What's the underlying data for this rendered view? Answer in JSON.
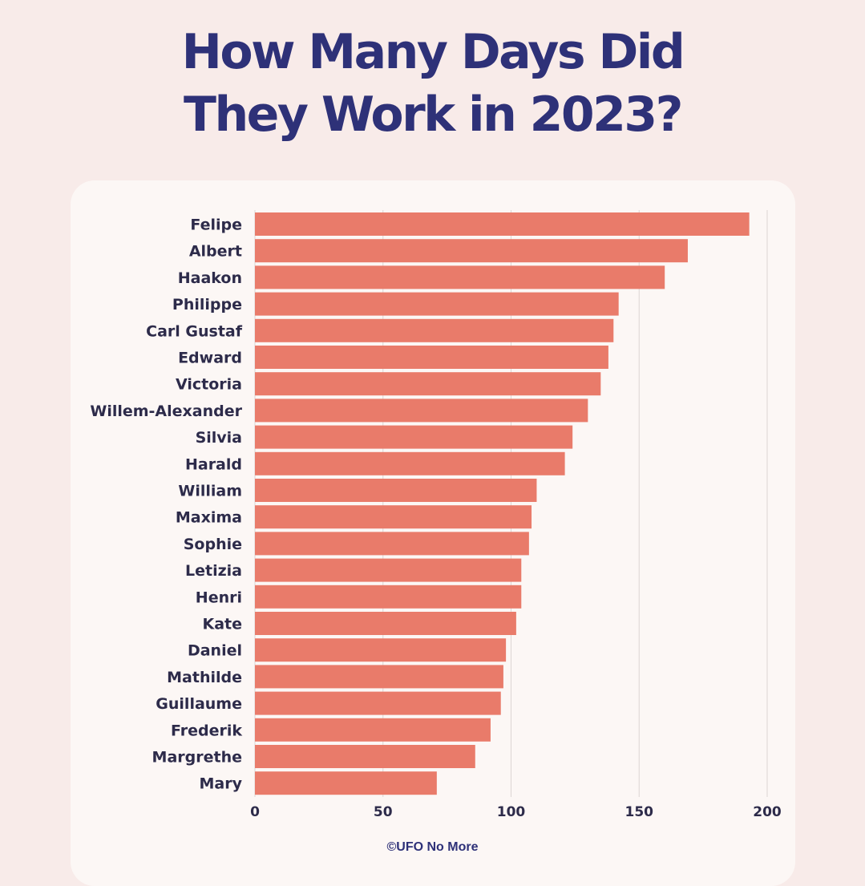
{
  "title_line1": "How Many Days Did",
  "title_line2": "They Work in 2023?",
  "credit": "©UFO No More",
  "colors": {
    "background": "#f8ebe9",
    "card": "#fcf7f5",
    "bar": "#e97b6a",
    "text": "#2e3178",
    "label": "#2d2b4a",
    "grid": "#dcd6d4"
  },
  "chart_data": {
    "type": "bar",
    "orientation": "horizontal",
    "title": "How Many Days Did They Work in 2023?",
    "categories": [
      "Felipe",
      "Albert",
      "Haakon",
      "Philippe",
      "Carl Gustaf",
      "Edward",
      "Victoria",
      "Willem-Alexander",
      "Silvia",
      "Harald",
      "William",
      "Maxima",
      "Sophie",
      "Letizia",
      "Henri",
      "Kate",
      "Daniel",
      "Mathilde",
      "Guillaume",
      "Frederik",
      "Margrethe",
      "Mary"
    ],
    "values": [
      193,
      169,
      160,
      142,
      140,
      138,
      135,
      130,
      124,
      121,
      110,
      108,
      107,
      104,
      104,
      102,
      98,
      97,
      96,
      92,
      86,
      71
    ],
    "xlabel": "",
    "ylabel": "",
    "xlim": [
      0,
      200
    ],
    "xticks": [
      0,
      50,
      100,
      150,
      200
    ],
    "grid": true
  }
}
